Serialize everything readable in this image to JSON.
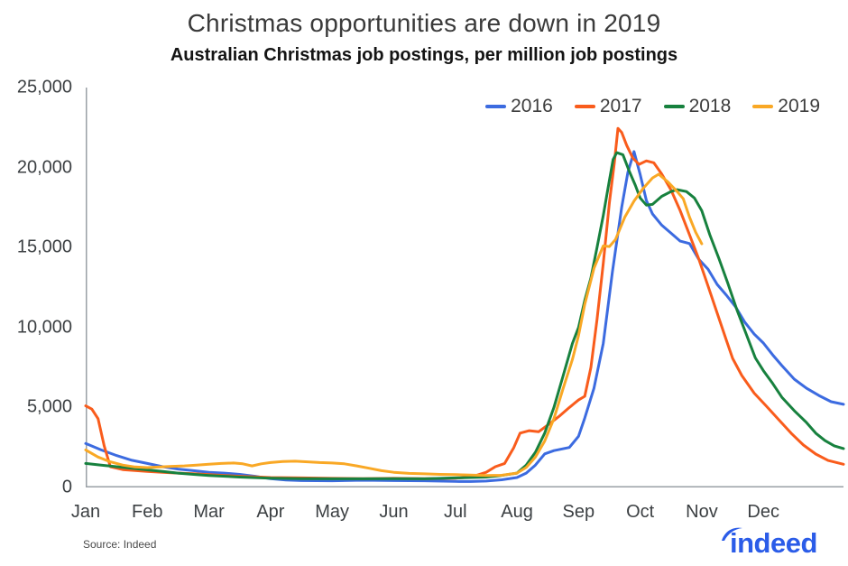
{
  "title": "Christmas opportunities are down in 2019",
  "subtitle": "Australian Christmas job postings, per million job postings",
  "source": "Source: Indeed",
  "brand": {
    "logo_text": "indeed",
    "logo_color": "#2b5ce8"
  },
  "chart_data": {
    "type": "line",
    "title": "Christmas opportunities are down in 2019",
    "subtitle": "Australian Christmas job postings, per million job postings",
    "xlabel": "",
    "ylabel": "",
    "grid": false,
    "axis_color": "#9aa0a6",
    "x_axis": {
      "unit": "month",
      "labels": [
        "Jan",
        "Feb",
        "Mar",
        "Apr",
        "May",
        "Jun",
        "Jul",
        "Aug",
        "Sep",
        "Oct",
        "Nov",
        "Dec"
      ],
      "range_months": [
        0,
        12.3
      ]
    },
    "y_axis": {
      "range": [
        0,
        25000
      ],
      "ticks": [
        0,
        5000,
        10000,
        15000,
        20000,
        25000
      ],
      "tick_labels": [
        "0",
        "5,000",
        "10,000",
        "15,000",
        "20,000",
        "25,000"
      ]
    },
    "legend": {
      "position": "top-right",
      "entries": [
        {
          "label": "2016",
          "color": "#3c6be0"
        },
        {
          "label": "2017",
          "color": "#f95c1c"
        },
        {
          "label": "2018",
          "color": "#17813e"
        },
        {
          "label": "2019",
          "color": "#f9a825"
        }
      ]
    },
    "series": [
      {
        "name": "2016",
        "color": "#3c6be0",
        "points": [
          [
            0,
            2750
          ],
          [
            0.25,
            2350
          ],
          [
            0.5,
            2000
          ],
          [
            0.75,
            1700
          ],
          [
            1,
            1500
          ],
          [
            1.25,
            1300
          ],
          [
            1.5,
            1150
          ],
          [
            1.75,
            1050
          ],
          [
            2,
            950
          ],
          [
            2.25,
            900
          ],
          [
            2.5,
            820
          ],
          [
            2.75,
            700
          ],
          [
            3,
            550
          ],
          [
            3.25,
            470
          ],
          [
            3.5,
            430
          ],
          [
            4,
            420
          ],
          [
            4.5,
            450
          ],
          [
            5,
            430
          ],
          [
            5.5,
            420
          ],
          [
            6,
            380
          ],
          [
            6.25,
            370
          ],
          [
            6.5,
            400
          ],
          [
            6.75,
            480
          ],
          [
            7,
            620
          ],
          [
            7.15,
            900
          ],
          [
            7.3,
            1400
          ],
          [
            7.45,
            2100
          ],
          [
            7.6,
            2300
          ],
          [
            7.85,
            2500
          ],
          [
            8,
            3200
          ],
          [
            8.1,
            4340
          ],
          [
            8.25,
            6200
          ],
          [
            8.4,
            9000
          ],
          [
            8.55,
            13500
          ],
          [
            8.7,
            17500
          ],
          [
            8.8,
            19700
          ],
          [
            8.9,
            21000
          ],
          [
            9,
            19570
          ],
          [
            9.1,
            17940
          ],
          [
            9.2,
            17100
          ],
          [
            9.35,
            16400
          ],
          [
            9.5,
            15900
          ],
          [
            9.65,
            15400
          ],
          [
            9.8,
            15250
          ],
          [
            9.95,
            14270
          ],
          [
            10.1,
            13650
          ],
          [
            10.25,
            12690
          ],
          [
            10.4,
            12020
          ],
          [
            10.55,
            11280
          ],
          [
            10.7,
            10320
          ],
          [
            10.85,
            9590
          ],
          [
            11,
            9030
          ],
          [
            11.15,
            8290
          ],
          [
            11.3,
            7620
          ],
          [
            11.5,
            6770
          ],
          [
            11.7,
            6200
          ],
          [
            11.9,
            5750
          ],
          [
            12.1,
            5360
          ],
          [
            12.3,
            5200
          ]
        ]
      },
      {
        "name": "2017",
        "color": "#f95c1c",
        "points": [
          [
            0,
            5100
          ],
          [
            0.1,
            4900
          ],
          [
            0.2,
            4300
          ],
          [
            0.3,
            2600
          ],
          [
            0.4,
            1300
          ],
          [
            0.6,
            1120
          ],
          [
            0.8,
            1060
          ],
          [
            1,
            1000
          ],
          [
            1.25,
            950
          ],
          [
            1.5,
            900
          ],
          [
            1.75,
            860
          ],
          [
            2,
            800
          ],
          [
            2.25,
            750
          ],
          [
            2.5,
            700
          ],
          [
            2.75,
            660
          ],
          [
            3,
            620
          ],
          [
            3.5,
            600
          ],
          [
            4,
            570
          ],
          [
            4.5,
            550
          ],
          [
            5,
            570
          ],
          [
            5.5,
            550
          ],
          [
            6,
            580
          ],
          [
            6.25,
            650
          ],
          [
            6.5,
            950
          ],
          [
            6.65,
            1300
          ],
          [
            6.8,
            1500
          ],
          [
            6.95,
            2500
          ],
          [
            7.05,
            3400
          ],
          [
            7.2,
            3550
          ],
          [
            7.35,
            3480
          ],
          [
            7.5,
            3900
          ],
          [
            7.7,
            4500
          ],
          [
            7.85,
            5000
          ],
          [
            8,
            5470
          ],
          [
            8.1,
            5700
          ],
          [
            8.2,
            7500
          ],
          [
            8.3,
            10500
          ],
          [
            8.4,
            14000
          ],
          [
            8.5,
            17800
          ],
          [
            8.58,
            20300
          ],
          [
            8.64,
            22450
          ],
          [
            8.7,
            22200
          ],
          [
            8.78,
            21400
          ],
          [
            8.88,
            20600
          ],
          [
            8.98,
            20200
          ],
          [
            9.1,
            20420
          ],
          [
            9.22,
            20300
          ],
          [
            9.35,
            19600
          ],
          [
            9.5,
            18600
          ],
          [
            9.65,
            17300
          ],
          [
            9.8,
            15800
          ],
          [
            9.95,
            14300
          ],
          [
            10.1,
            12600
          ],
          [
            10.25,
            10900
          ],
          [
            10.4,
            9200
          ],
          [
            10.5,
            8070
          ],
          [
            10.65,
            7000
          ],
          [
            10.85,
            5900
          ],
          [
            11.05,
            5080
          ],
          [
            11.25,
            4230
          ],
          [
            11.45,
            3390
          ],
          [
            11.65,
            2650
          ],
          [
            11.85,
            2090
          ],
          [
            12.05,
            1690
          ],
          [
            12.3,
            1450
          ]
        ]
      },
      {
        "name": "2018",
        "color": "#17813e",
        "points": [
          [
            0,
            1500
          ],
          [
            0.25,
            1400
          ],
          [
            0.5,
            1300
          ],
          [
            0.75,
            1200
          ],
          [
            1,
            1100
          ],
          [
            1.25,
            1000
          ],
          [
            1.5,
            900
          ],
          [
            1.75,
            820
          ],
          [
            2,
            750
          ],
          [
            2.5,
            650
          ],
          [
            3,
            580
          ],
          [
            3.5,
            550
          ],
          [
            4,
            540
          ],
          [
            4.5,
            540
          ],
          [
            5,
            550
          ],
          [
            5.5,
            540
          ],
          [
            6,
            600
          ],
          [
            6.5,
            650
          ],
          [
            6.75,
            750
          ],
          [
            7,
            900
          ],
          [
            7.15,
            1400
          ],
          [
            7.3,
            2200
          ],
          [
            7.45,
            3400
          ],
          [
            7.6,
            5000
          ],
          [
            7.75,
            7000
          ],
          [
            7.9,
            9000
          ],
          [
            8,
            10000
          ],
          [
            8.1,
            11700
          ],
          [
            8.2,
            13100
          ],
          [
            8.3,
            15000
          ],
          [
            8.4,
            17000
          ],
          [
            8.5,
            19200
          ],
          [
            8.56,
            20500
          ],
          [
            8.62,
            20930
          ],
          [
            8.72,
            20800
          ],
          [
            8.82,
            19800
          ],
          [
            8.92,
            18900
          ],
          [
            9,
            18100
          ],
          [
            9.1,
            17650
          ],
          [
            9.2,
            17700
          ],
          [
            9.35,
            18200
          ],
          [
            9.5,
            18500
          ],
          [
            9.6,
            18620
          ],
          [
            9.75,
            18500
          ],
          [
            9.88,
            18100
          ],
          [
            10,
            17300
          ],
          [
            10.13,
            15800
          ],
          [
            10.28,
            14300
          ],
          [
            10.42,
            12800
          ],
          [
            10.57,
            11100
          ],
          [
            10.72,
            9600
          ],
          [
            10.87,
            8100
          ],
          [
            11,
            7300
          ],
          [
            11.15,
            6500
          ],
          [
            11.3,
            5640
          ],
          [
            11.5,
            4800
          ],
          [
            11.7,
            4060
          ],
          [
            11.85,
            3390
          ],
          [
            12,
            2930
          ],
          [
            12.15,
            2600
          ],
          [
            12.3,
            2430
          ]
        ]
      },
      {
        "name": "2019",
        "color": "#f9a825",
        "points": [
          [
            0,
            2350
          ],
          [
            0.2,
            1900
          ],
          [
            0.4,
            1600
          ],
          [
            0.6,
            1400
          ],
          [
            0.8,
            1280
          ],
          [
            1,
            1240
          ],
          [
            1.2,
            1280
          ],
          [
            1.4,
            1320
          ],
          [
            1.6,
            1350
          ],
          [
            1.8,
            1400
          ],
          [
            2,
            1450
          ],
          [
            2.2,
            1500
          ],
          [
            2.4,
            1530
          ],
          [
            2.55,
            1480
          ],
          [
            2.7,
            1350
          ],
          [
            2.85,
            1480
          ],
          [
            3,
            1560
          ],
          [
            3.2,
            1620
          ],
          [
            3.4,
            1640
          ],
          [
            3.6,
            1600
          ],
          [
            3.8,
            1560
          ],
          [
            4,
            1530
          ],
          [
            4.2,
            1480
          ],
          [
            4.4,
            1350
          ],
          [
            4.6,
            1200
          ],
          [
            4.8,
            1050
          ],
          [
            5,
            950
          ],
          [
            5.25,
            880
          ],
          [
            5.5,
            850
          ],
          [
            5.75,
            820
          ],
          [
            6,
            800
          ],
          [
            6.25,
            780
          ],
          [
            6.5,
            750
          ],
          [
            6.75,
            760
          ],
          [
            7,
            900
          ],
          [
            7.15,
            1250
          ],
          [
            7.3,
            1900
          ],
          [
            7.45,
            2900
          ],
          [
            7.6,
            4300
          ],
          [
            7.75,
            6200
          ],
          [
            7.9,
            8000
          ],
          [
            8,
            9500
          ],
          [
            8.1,
            11450
          ],
          [
            8.25,
            13700
          ],
          [
            8.4,
            15100
          ],
          [
            8.5,
            15060
          ],
          [
            8.6,
            15500
          ],
          [
            8.75,
            16900
          ],
          [
            8.9,
            17900
          ],
          [
            9.05,
            18700
          ],
          [
            9.2,
            19350
          ],
          [
            9.3,
            19580
          ],
          [
            9.45,
            19100
          ],
          [
            9.6,
            18500
          ],
          [
            9.7,
            18050
          ],
          [
            9.8,
            16900
          ],
          [
            9.9,
            15960
          ],
          [
            10,
            15230
          ]
        ]
      }
    ]
  }
}
